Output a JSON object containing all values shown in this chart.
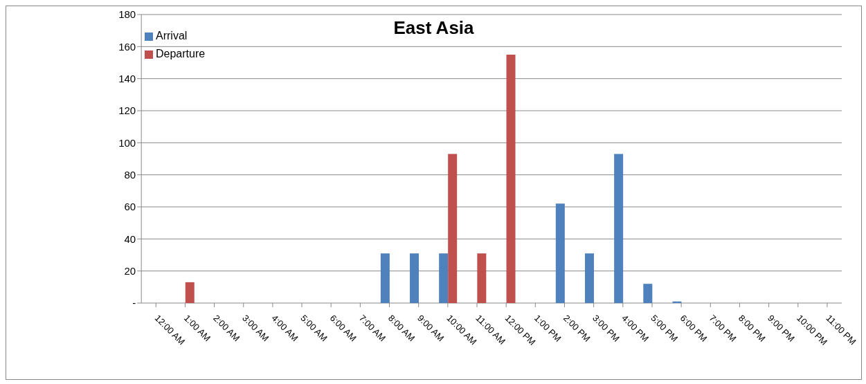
{
  "chart_data": {
    "type": "bar",
    "title": "East Asia",
    "categories": [
      "12:00 AM",
      "1:00 AM",
      "2:00 AM",
      "3:00 AM",
      "4:00 AM",
      "5:00 AM",
      "6:00 AM",
      "7:00 AM",
      "8:00 AM",
      "9:00 AM",
      "10:00 AM",
      "11:00 AM",
      "12:00 PM",
      "1:00 PM",
      "2:00 PM",
      "3:00 PM",
      "4:00 PM",
      "5:00 PM",
      "6:00 PM",
      "7:00 PM",
      "8:00 PM",
      "9:00 PM",
      "10:00 PM",
      "11:00 PM"
    ],
    "series": [
      {
        "name": "Arrival",
        "color": "#4f81bd",
        "values": [
          0,
          0,
          0,
          0,
          0,
          0,
          0,
          0,
          31,
          31,
          31,
          0,
          0,
          0,
          62,
          31,
          93,
          12,
          1,
          0,
          0,
          0,
          0,
          0
        ]
      },
      {
        "name": "Departure",
        "color": "#c0504d",
        "values": [
          0,
          13,
          0,
          0,
          0,
          0,
          0,
          0,
          0,
          0,
          93,
          31,
          155,
          0,
          0,
          0,
          0,
          0,
          0,
          0,
          0,
          0,
          0,
          0
        ]
      }
    ],
    "ylim": [
      0,
      180
    ],
    "yticks": [
      {
        "value": 0,
        "label": "-"
      },
      20,
      40,
      60,
      80,
      100,
      120,
      140,
      160,
      180
    ],
    "grid": "y",
    "legend": "top left"
  }
}
